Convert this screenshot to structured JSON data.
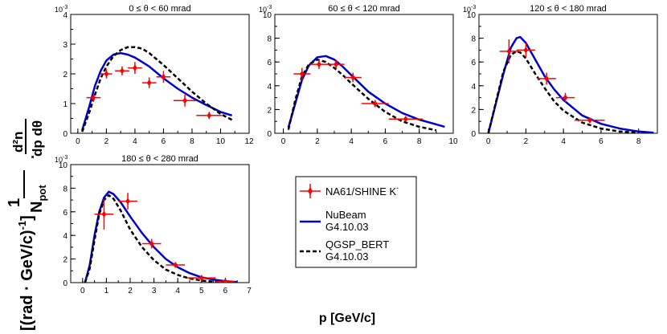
{
  "figure": {
    "ylabel_prefix": "1",
    "ylabel_npot": "N",
    "ylabel_npot_sub": "pot",
    "ylabel_dot": "·",
    "ylabel_num": "d²n",
    "ylabel_den": "dp dθ",
    "ylabel_units": "[(rad · GeV/c)",
    "ylabel_units_exp": "-1",
    "ylabel_units_close": "]",
    "xlabel": "p [GeV/c]"
  },
  "legend": {
    "entries": [
      {
        "label": "NA61/SHINE K",
        "label_sup": "-",
        "style": "data"
      },
      {
        "label": "NuBeam",
        "label2": "G4.10.03",
        "style": "solid"
      },
      {
        "label": "QGSP_BERT",
        "label2": "G4.10.03",
        "style": "dashed"
      }
    ]
  },
  "colors": {
    "data": "#ff0000",
    "nubeam": "#0000cc",
    "qgsp": "#000000"
  },
  "chart_data": [
    {
      "type": "line",
      "title": "0 ≤ θ < 60 mrad",
      "xlim": [
        -0.5,
        12
      ],
      "ylim": [
        0,
        4
      ],
      "xticks": [
        0,
        2,
        4,
        6,
        8,
        10,
        12
      ],
      "yticks": [
        0,
        1,
        2,
        3,
        4
      ],
      "xminor": 1,
      "yminor": 0.5,
      "yexponent": "-3",
      "data_points": [
        {
          "x": 1.1,
          "y": 1.2,
          "xerr": 0.5,
          "yerr": 0.12
        },
        {
          "x": 2.0,
          "y": 2.0,
          "xerr": 0.4,
          "yerr": 0.15
        },
        {
          "x": 3.1,
          "y": 2.1,
          "xerr": 0.5,
          "yerr": 0.15
        },
        {
          "x": 4.0,
          "y": 2.2,
          "xerr": 0.5,
          "yerr": 0.2
        },
        {
          "x": 5.0,
          "y": 1.7,
          "xerr": 0.5,
          "yerr": 0.18
        },
        {
          "x": 6.0,
          "y": 1.9,
          "xerr": 0.5,
          "yerr": 0.2
        },
        {
          "x": 7.5,
          "y": 1.1,
          "xerr": 0.8,
          "yerr": 0.2
        },
        {
          "x": 9.2,
          "y": 0.6,
          "xerr": 0.9,
          "yerr": 0.12
        }
      ],
      "series": [
        {
          "name": "NuBeam G4.10.03",
          "style": "solid",
          "x": [
            0.3,
            0.8,
            1.2,
            1.6,
            2.0,
            2.5,
            3.0,
            3.5,
            4.0,
            4.5,
            5.0,
            6.0,
            7.0,
            8.0,
            9.0,
            10.0,
            10.8
          ],
          "y": [
            0.1,
            0.9,
            1.6,
            2.1,
            2.45,
            2.65,
            2.7,
            2.65,
            2.55,
            2.4,
            2.25,
            1.85,
            1.5,
            1.2,
            0.95,
            0.72,
            0.6
          ]
        },
        {
          "name": "QGSP_BERT G4.10.03",
          "style": "dashed",
          "x": [
            0.3,
            0.8,
            1.2,
            1.6,
            2.0,
            2.5,
            3.0,
            3.5,
            4.0,
            4.5,
            5.0,
            6.0,
            7.0,
            8.0,
            9.0,
            10.0,
            10.8
          ],
          "y": [
            0.05,
            0.7,
            1.3,
            1.85,
            2.25,
            2.6,
            2.8,
            2.9,
            2.9,
            2.85,
            2.7,
            2.3,
            1.85,
            1.4,
            1.0,
            0.65,
            0.45
          ]
        }
      ]
    },
    {
      "type": "line",
      "title": "60 ≤ θ < 120 mrad",
      "xlim": [
        -0.5,
        10
      ],
      "ylim": [
        0,
        10
      ],
      "xticks": [
        0,
        2,
        4,
        6,
        8,
        10
      ],
      "yticks": [
        0,
        2,
        4,
        6,
        8,
        10
      ],
      "xminor": 1,
      "yminor": 1,
      "yexponent": "-3",
      "data_points": [
        {
          "x": 1.1,
          "y": 5.0,
          "xerr": 0.5,
          "yerr": 0.5
        },
        {
          "x": 2.1,
          "y": 5.8,
          "xerr": 0.5,
          "yerr": 0.4
        },
        {
          "x": 3.1,
          "y": 5.8,
          "xerr": 0.5,
          "yerr": 0.4
        },
        {
          "x": 4.1,
          "y": 4.7,
          "xerr": 0.5,
          "yerr": 0.4
        },
        {
          "x": 5.4,
          "y": 2.5,
          "xerr": 0.8,
          "yerr": 0.3
        },
        {
          "x": 7.2,
          "y": 1.2,
          "xerr": 1.0,
          "yerr": 0.2
        }
      ],
      "series": [
        {
          "name": "NuBeam G4.10.03",
          "style": "solid",
          "x": [
            0.3,
            0.7,
            1.1,
            1.5,
            2.0,
            2.5,
            3.0,
            3.5,
            4.0,
            5.0,
            6.0,
            7.0,
            8.0,
            9.0,
            9.5
          ],
          "y": [
            0.5,
            2.5,
            4.5,
            5.7,
            6.4,
            6.5,
            6.2,
            5.6,
            4.9,
            3.5,
            2.5,
            1.7,
            1.15,
            0.75,
            0.55
          ]
        },
        {
          "name": "QGSP_BERT G4.10.03",
          "style": "dashed",
          "x": [
            0.3,
            0.7,
            1.1,
            1.5,
            2.0,
            2.5,
            3.0,
            3.5,
            4.0,
            5.0,
            6.0,
            7.0,
            8.0,
            9.0
          ],
          "y": [
            0.3,
            2.8,
            4.8,
            5.8,
            6.2,
            6.0,
            5.5,
            4.9,
            4.2,
            2.9,
            1.8,
            1.0,
            0.55,
            0.25
          ]
        }
      ]
    },
    {
      "type": "line",
      "title": "120 ≤ θ < 180 mrad",
      "xlim": [
        -0.5,
        9
      ],
      "ylim": [
        0,
        10
      ],
      "xticks": [
        0,
        2,
        4,
        6,
        8
      ],
      "yticks": [
        0,
        2,
        4,
        6,
        8,
        10
      ],
      "xminor": 1,
      "yminor": 1,
      "yexponent": "-3",
      "data_points": [
        {
          "x": 1.1,
          "y": 6.9,
          "xerr": 0.5,
          "yerr": 1.0
        },
        {
          "x": 2.0,
          "y": 7.0,
          "xerr": 0.5,
          "yerr": 0.6
        },
        {
          "x": 3.1,
          "y": 4.6,
          "xerr": 0.5,
          "yerr": 0.5
        },
        {
          "x": 4.1,
          "y": 3.0,
          "xerr": 0.5,
          "yerr": 0.4
        },
        {
          "x": 5.4,
          "y": 1.1,
          "xerr": 0.8,
          "yerr": 0.2
        }
      ],
      "series": [
        {
          "name": "NuBeam G4.10.03",
          "style": "solid",
          "x": [
            0.0,
            0.4,
            0.8,
            1.2,
            1.5,
            1.7,
            2.0,
            2.5,
            3.0,
            3.5,
            4.0,
            5.0,
            6.0,
            7.0,
            8.0,
            8.8
          ],
          "y": [
            0.0,
            2.5,
            5.0,
            7.2,
            8.0,
            8.1,
            7.6,
            6.2,
            4.8,
            3.7,
            2.8,
            1.5,
            0.8,
            0.4,
            0.15,
            0.05
          ]
        },
        {
          "name": "QGSP_BERT G4.10.03",
          "style": "dashed",
          "x": [
            0.0,
            0.4,
            0.8,
            1.2,
            1.5,
            1.7,
            2.0,
            2.5,
            3.0,
            3.5,
            4.0,
            5.0,
            6.0,
            7.0,
            8.0
          ],
          "y": [
            0.0,
            2.6,
            5.2,
            6.6,
            6.9,
            6.8,
            6.3,
            5.0,
            3.8,
            2.7,
            1.9,
            0.9,
            0.4,
            0.15,
            0.05
          ]
        }
      ]
    },
    {
      "type": "line",
      "title": "180 ≤ θ < 280 mrad",
      "xlim": [
        -0.5,
        7
      ],
      "ylim": [
        0,
        10
      ],
      "xticks": [
        0,
        1,
        2,
        3,
        4,
        5,
        6,
        7
      ],
      "yticks": [
        0,
        2,
        4,
        6,
        8,
        10
      ],
      "xminor": 0.5,
      "yminor": 1,
      "yexponent": "-3",
      "data_points": [
        {
          "x": 0.9,
          "y": 5.8,
          "xerr": 0.4,
          "yerr": 1.3
        },
        {
          "x": 1.9,
          "y": 6.9,
          "xerr": 0.4,
          "yerr": 0.7
        },
        {
          "x": 2.9,
          "y": 3.3,
          "xerr": 0.4,
          "yerr": 0.4
        },
        {
          "x": 3.9,
          "y": 1.5,
          "xerr": 0.4,
          "yerr": 0.2
        },
        {
          "x": 5.0,
          "y": 0.4,
          "xerr": 0.6,
          "yerr": 0.1
        },
        {
          "x": 6.0,
          "y": 0.1,
          "xerr": 0.4,
          "yerr": 0.05
        }
      ],
      "series": [
        {
          "name": "NuBeam G4.10.03",
          "style": "solid",
          "x": [
            0.1,
            0.3,
            0.5,
            0.7,
            0.9,
            1.1,
            1.3,
            1.6,
            2.0,
            2.5,
            3.0,
            3.5,
            4.0,
            4.5,
            5.0,
            5.5,
            6.0,
            6.5
          ],
          "y": [
            0.0,
            1.5,
            4.0,
            6.0,
            7.2,
            7.7,
            7.5,
            6.8,
            5.6,
            4.2,
            3.0,
            2.0,
            1.3,
            0.8,
            0.45,
            0.25,
            0.12,
            0.05
          ]
        },
        {
          "name": "QGSP_BERT G4.10.03",
          "style": "dashed",
          "x": [
            0.1,
            0.3,
            0.5,
            0.7,
            0.9,
            1.1,
            1.3,
            1.6,
            2.0,
            2.5,
            3.0,
            3.5,
            4.0,
            4.5,
            5.0,
            5.5,
            6.0
          ],
          "y": [
            0.0,
            1.2,
            3.6,
            5.8,
            7.0,
            7.4,
            7.1,
            6.1,
            4.5,
            3.0,
            1.9,
            1.1,
            0.65,
            0.35,
            0.18,
            0.08,
            0.03
          ]
        }
      ]
    }
  ]
}
